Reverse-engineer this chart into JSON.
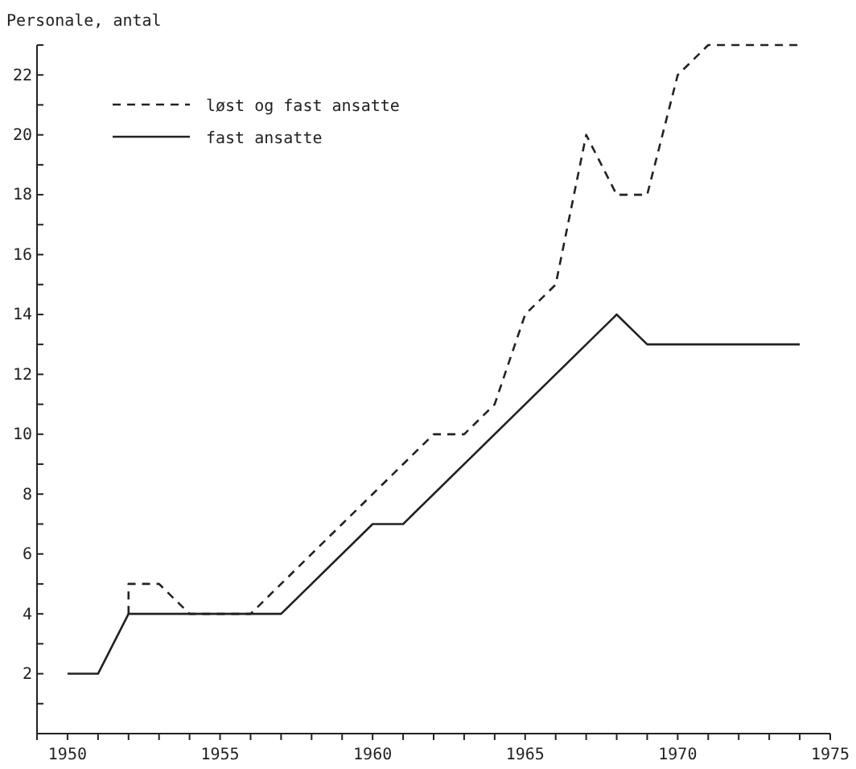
{
  "chart_data": {
    "type": "line",
    "ylabel": "Personale, antal",
    "xlim": [
      1949,
      1975
    ],
    "ylim": [
      0,
      23
    ],
    "xticks": [
      {
        "value": 1949,
        "label": null
      },
      1950,
      {
        "value": 1951,
        "label": null
      },
      {
        "value": 1952,
        "label": null
      },
      {
        "value": 1953,
        "label": null
      },
      {
        "value": 1954,
        "label": null
      },
      1955,
      {
        "value": 1956,
        "label": null
      },
      {
        "value": 1957,
        "label": null
      },
      {
        "value": 1958,
        "label": null
      },
      {
        "value": 1959,
        "label": null
      },
      1960,
      {
        "value": 1961,
        "label": null
      },
      {
        "value": 1962,
        "label": null
      },
      {
        "value": 1963,
        "label": null
      },
      {
        "value": 1964,
        "label": null
      },
      1965,
      {
        "value": 1966,
        "label": null
      },
      {
        "value": 1967,
        "label": null
      },
      {
        "value": 1968,
        "label": null
      },
      {
        "value": 1969,
        "label": null
      },
      1970,
      {
        "value": 1971,
        "label": null
      },
      {
        "value": 1972,
        "label": null
      },
      {
        "value": 1973,
        "label": null
      },
      {
        "value": 1974,
        "label": null
      },
      1975
    ],
    "yticks": [
      {
        "value": 1,
        "label": null
      },
      2,
      {
        "value": 3,
        "label": null
      },
      4,
      {
        "value": 5,
        "label": null
      },
      6,
      {
        "value": 7,
        "label": null
      },
      8,
      {
        "value": 9,
        "label": null
      },
      10,
      {
        "value": 11,
        "label": null
      },
      12,
      {
        "value": 13,
        "label": null
      },
      14,
      {
        "value": 15,
        "label": null
      },
      16,
      {
        "value": 17,
        "label": null
      },
      18,
      {
        "value": 19,
        "label": null
      },
      20,
      {
        "value": 21,
        "label": null
      },
      22,
      {
        "value": 23,
        "label": null
      }
    ],
    "grid": false,
    "legend": "top left",
    "marker": "none",
    "series": [
      {
        "name": "løst og fast ansatte",
        "color": "#222222",
        "line_style": "dashed",
        "x": [
          1952,
          1952,
          1953,
          1954,
          1955,
          1956,
          1957,
          1958,
          1959,
          1960,
          1961,
          1962,
          1963,
          1964,
          1965,
          1966,
          1967,
          1968,
          1969,
          1970,
          1971,
          1972,
          1973,
          1974
        ],
        "values": [
          4,
          5,
          5,
          4,
          4,
          4,
          5,
          6,
          7,
          8,
          9,
          10,
          10,
          11,
          14,
          15,
          20,
          18,
          18,
          22,
          23,
          23,
          23,
          23
        ]
      },
      {
        "name": "fast ansatte",
        "color": "#222222",
        "line_style": "solid",
        "x": [
          1950,
          1951,
          1952,
          1953,
          1954,
          1955,
          1956,
          1957,
          1960,
          1961,
          1968,
          1969,
          1974
        ],
        "values": [
          2,
          2,
          4,
          4,
          4,
          4,
          4,
          4,
          7,
          7,
          14,
          13,
          13
        ]
      }
    ]
  }
}
